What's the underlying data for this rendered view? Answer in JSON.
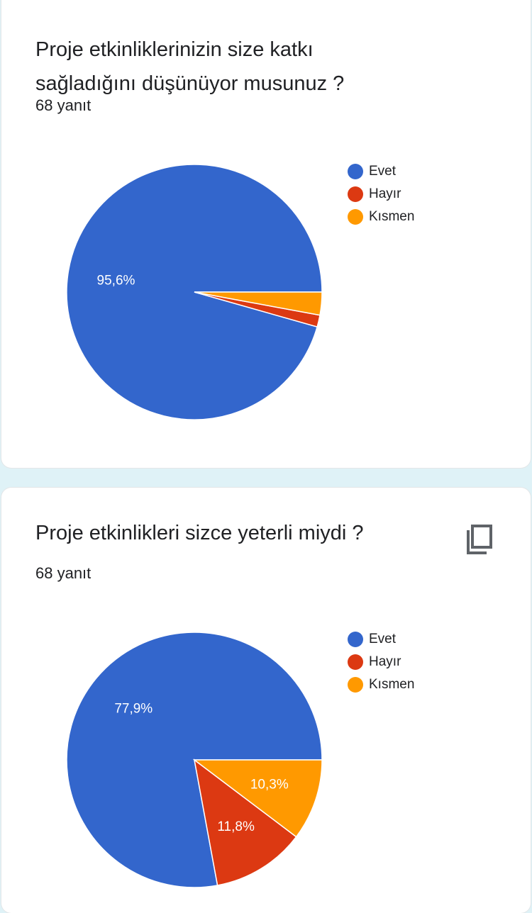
{
  "colors": {
    "Evet": "#3366cc",
    "Hayır": "#dc3912",
    "Kısmen": "#ff9900"
  },
  "icons": {
    "copy": "copy-icon"
  },
  "questions": [
    {
      "title": "Proje etkinliklerinizin size katkı sağladığını düşünüyor musunuz ?",
      "count": "68 yanıt",
      "legend": [
        "Evet",
        "Hayır",
        "Kısmen"
      ]
    },
    {
      "title": "Proje etkinlikleri sizce yeterli miydi ?",
      "count": "68 yanıt",
      "legend": [
        "Evet",
        "Hayır",
        "Kısmen"
      ]
    }
  ],
  "chart_data": [
    {
      "type": "pie",
      "categories": [
        "Evet",
        "Hayır",
        "Kısmen"
      ],
      "values": [
        95.6,
        1.5,
        2.9
      ],
      "labels": [
        "95,6%",
        "",
        ""
      ],
      "legend_position": "right"
    },
    {
      "type": "pie",
      "categories": [
        "Evet",
        "Hayır",
        "Kısmen"
      ],
      "values": [
        77.9,
        11.8,
        10.3
      ],
      "labels": [
        "77,9%",
        "11,8%",
        "10,3%"
      ],
      "legend_position": "right"
    }
  ]
}
